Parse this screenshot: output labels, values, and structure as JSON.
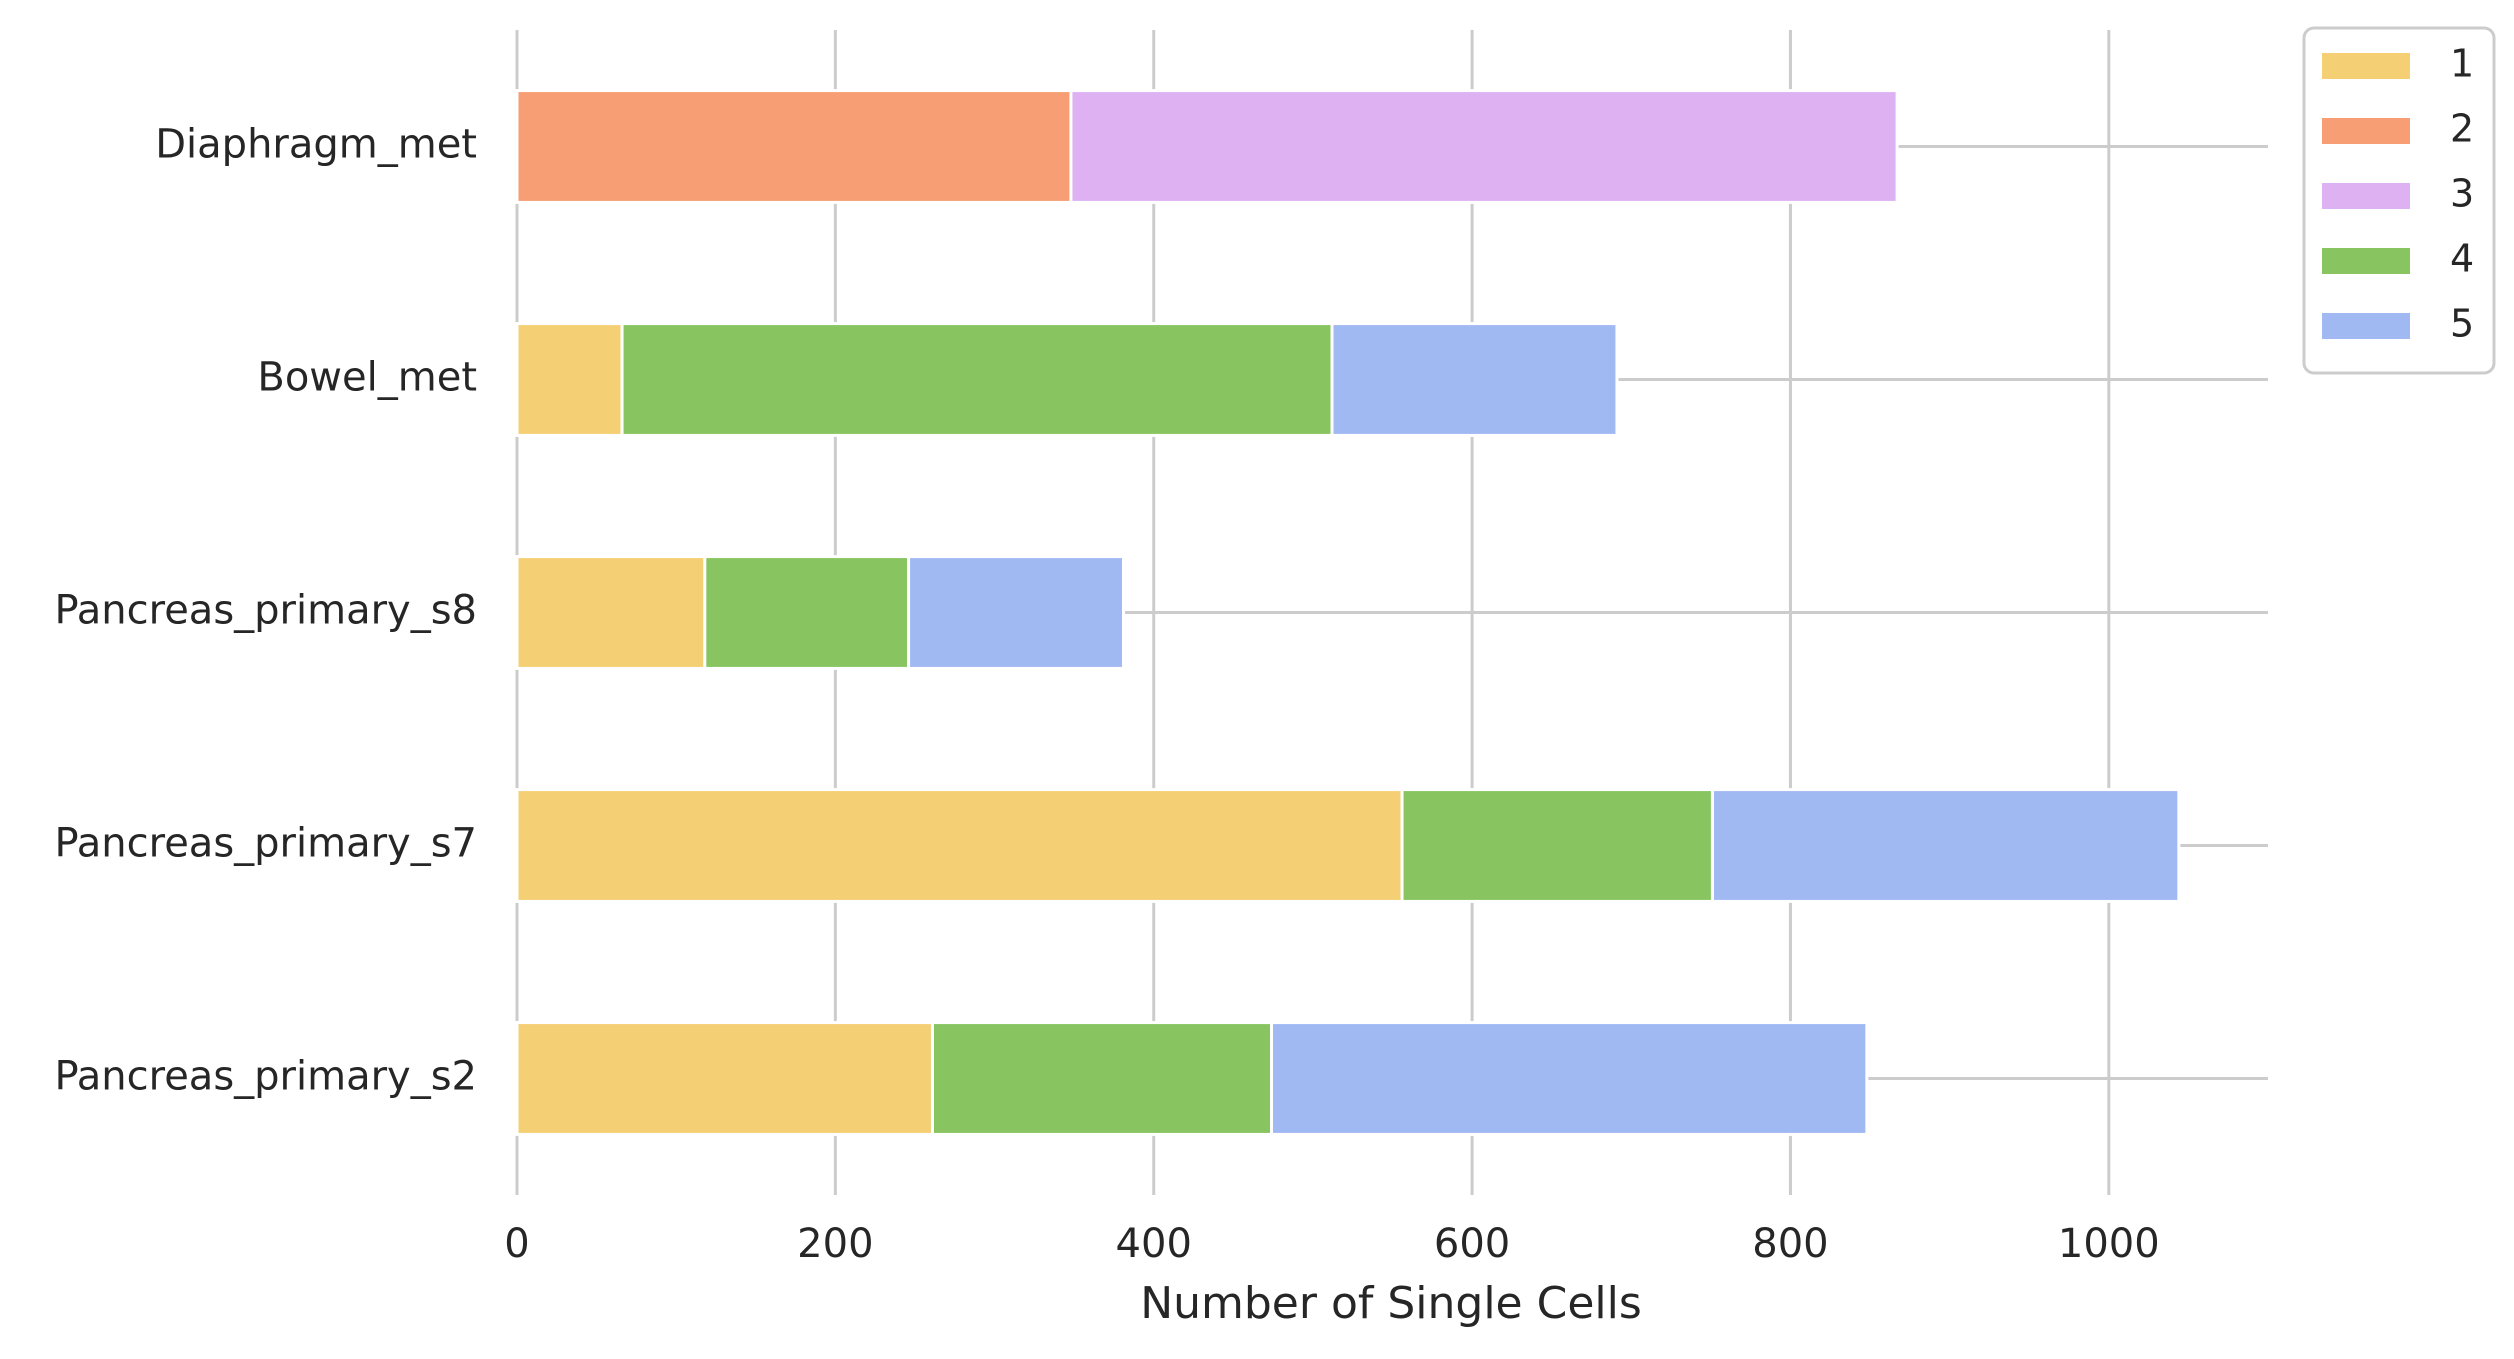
{
  "chart_data": {
    "type": "bar",
    "orientation": "horizontal",
    "stacked": true,
    "categories": [
      "Diaphragm_met",
      "Bowel_met",
      "Pancreas_primary_s8",
      "Pancreas_primary_s7",
      "Pancreas_primary_s2"
    ],
    "series": [
      {
        "name": "1",
        "color": "#f4cf74",
        "values": [
          0,
          66,
          118,
          556,
          261
        ]
      },
      {
        "name": "2",
        "color": "#f89e75",
        "values": [
          348,
          0,
          0,
          0,
          0
        ]
      },
      {
        "name": "3",
        "color": "#ddb1f2",
        "values": [
          519,
          0,
          0,
          0,
          0
        ]
      },
      {
        "name": "4",
        "color": "#88c560",
        "values": [
          0,
          446,
          128,
          195,
          213
        ]
      },
      {
        "name": "5",
        "color": "#a0b9f3",
        "values": [
          0,
          179,
          135,
          293,
          374
        ]
      }
    ],
    "xlabel": "Number of Single Cells",
    "ylabel": "",
    "xlim": [
      0,
      1100
    ],
    "xticks": [
      0,
      200,
      400,
      600,
      800,
      1000
    ],
    "grid": true,
    "legend_position": "top-right outside"
  }
}
